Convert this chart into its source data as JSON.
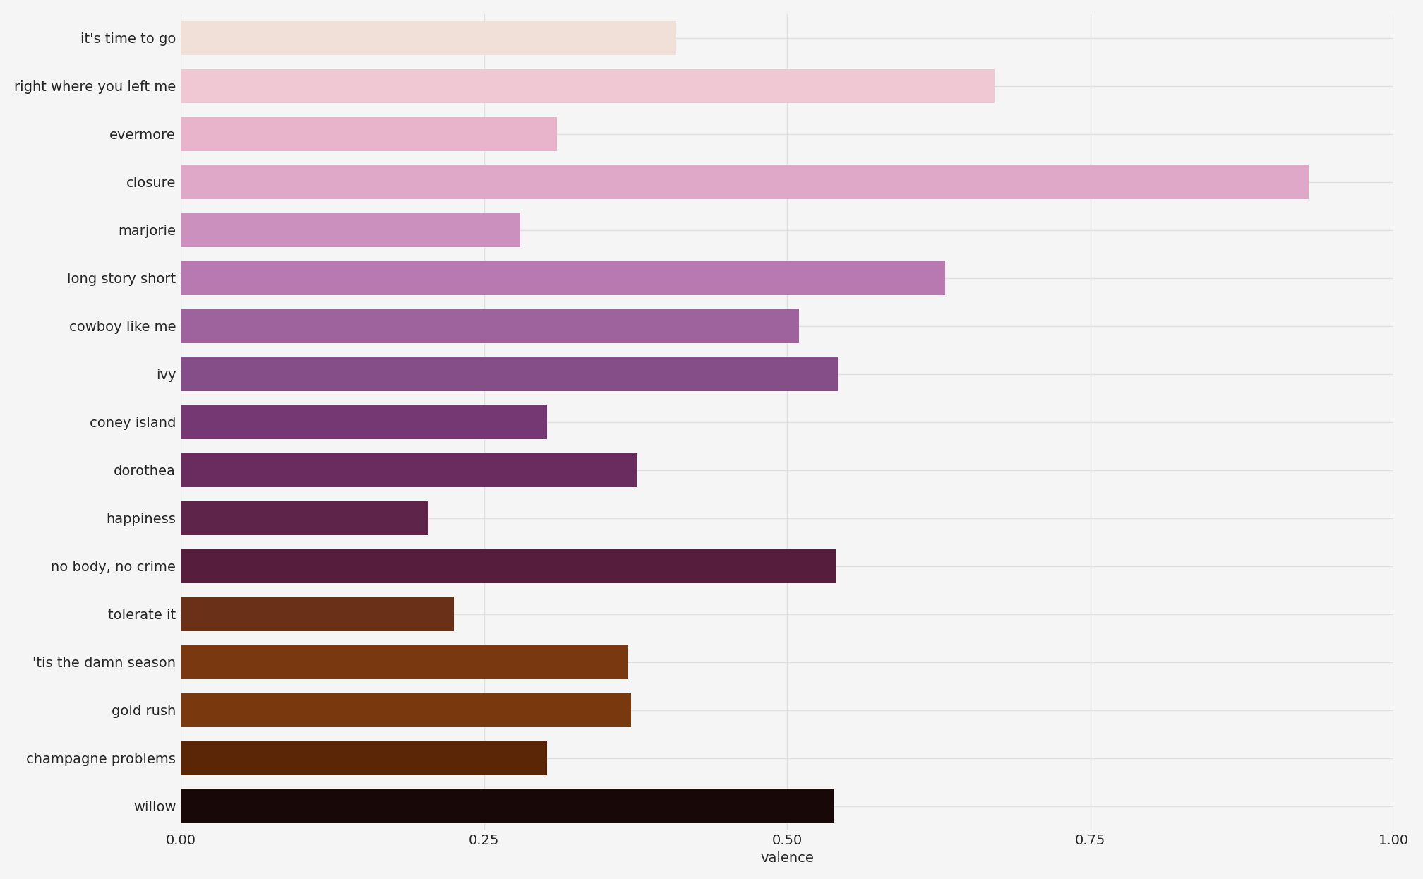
{
  "songs": [
    "it's time to go",
    "right where you left me",
    "evermore",
    "closure",
    "marjorie",
    "long story short",
    "cowboy like me",
    "ivy",
    "coney island",
    "dorothea",
    "happiness",
    "no body, no crime",
    "tolerate it",
    "'tis the damn season",
    "gold rush",
    "champagne problems",
    "willow"
  ],
  "valence": [
    0.408,
    0.671,
    0.31,
    0.93,
    0.28,
    0.63,
    0.51,
    0.542,
    0.302,
    0.376,
    0.204,
    0.54,
    0.225,
    0.368,
    0.371,
    0.302,
    0.538
  ],
  "bar_colors": [
    "#F0E0D8",
    "#F0C8D4",
    "#E8B4CC",
    "#DFA8C8",
    "#CC90BE",
    "#B878B0",
    "#9E629C",
    "#864E88",
    "#763872",
    "#6A2C5E",
    "#5E244A",
    "#561E3C",
    "#6B3018",
    "#7A3810",
    "#7A380E",
    "#5A2606",
    "#180808"
  ],
  "xlabel": "valence",
  "xlim": [
    0,
    1.0
  ],
  "xticks": [
    0.0,
    0.25,
    0.5,
    0.75,
    1.0
  ],
  "background_color": "#F5F5F5",
  "grid_color": "#E0E0E0",
  "label_fontsize": 14,
  "tick_fontsize": 14,
  "xlabel_fontsize": 14,
  "bar_height": 0.72
}
